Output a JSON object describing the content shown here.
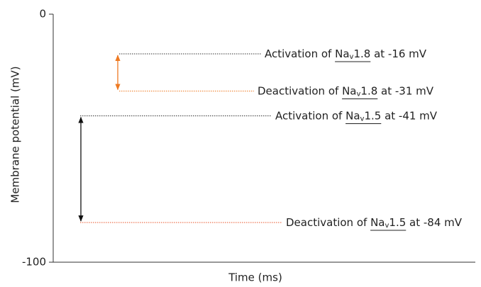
{
  "chart_data": {
    "type": "levels",
    "y_label": "Membrane potential (mV)",
    "x_label": "Time (ms)",
    "ylim": [
      -100,
      0
    ],
    "yticks": [
      0,
      -100
    ],
    "series": [
      {
        "color": "#ee7a22",
        "levels": [
          {
            "value": -16,
            "line_color": "#333333",
            "label_parts": [
              "Activation of ",
              "Na",
              "v",
              "1.8",
              " at -16 mV"
            ]
          },
          {
            "value": -31,
            "line_color": "#ee7a22",
            "label_parts": [
              "Deactivation of ",
              "Na",
              "v",
              "1.8",
              " at -31 mV"
            ]
          }
        ]
      },
      {
        "color": "#111111",
        "levels": [
          {
            "value": -41,
            "line_color": "#333333",
            "label_parts": [
              "Activation of ",
              "Na",
              "v",
              "1.5",
              " at -41 mV"
            ]
          },
          {
            "value": -84,
            "line_color": "#e8552a",
            "label_parts": [
              "Deactivation of ",
              "Na",
              "v",
              "1.5",
              " at -84 mV"
            ]
          }
        ]
      }
    ]
  }
}
